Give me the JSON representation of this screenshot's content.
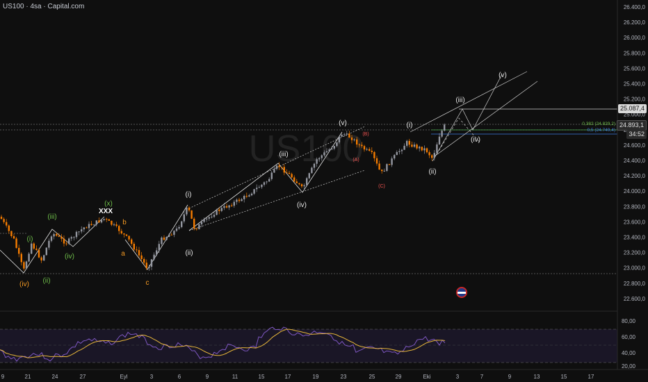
{
  "header": {
    "symbol_line": "US100 · 4sa · Capital.com"
  },
  "watermark": "US100",
  "price_axis": {
    "ticks": [
      "26.400,0",
      "26.200,0",
      "26.000,0",
      "25.800,0",
      "25.600,0",
      "25.400,0",
      "25.200,0",
      "25.000,0",
      "24.800,0",
      "24.600,0",
      "24.400,0",
      "24.200,0",
      "24.000,0",
      "23.800,0",
      "23.600,0",
      "23.400,0",
      "23.200,0",
      "23.000,0",
      "22.800,0",
      "22.600,0"
    ],
    "labels": {
      "level_high": "25.087,4",
      "last_price": "24.893,1",
      "countdown": "34:52"
    }
  },
  "rsi_axis": {
    "ticks": [
      "80,00",
      "60,00",
      "40,00",
      "20,00"
    ]
  },
  "time_axis": {
    "ticks": [
      "9",
      "21",
      "24",
      "27",
      "Eyl",
      "3",
      "6",
      "9",
      "11",
      "15",
      "17",
      "19",
      "23",
      "25",
      "29",
      "Eki",
      "3",
      "7",
      "9",
      "13",
      "15",
      "17"
    ]
  },
  "fib_labels": {
    "f382": "0,382 (24.829,2)",
    "f5": "0,5 (24.749,4)"
  },
  "waves": {
    "iv_orange": "(iv)",
    "ii_green": "(ii)",
    "i_green": "(i)",
    "iii_green": "(iii)",
    "iv_green": "(iv)",
    "x_green": "(x)",
    "xxx": "XXX",
    "b_orange": "b",
    "a_orange": "a",
    "c_orange": "c",
    "i_white": "(i)",
    "ii_white": "(ii)",
    "iii_white": "(iii)",
    "iv_white": "(iv)",
    "v_white": "(v)",
    "B_red": "(B)",
    "A_red": "(A)",
    "C_red": "(C)",
    "i_white2": "(i)",
    "ii_white2": "(ii)",
    "iii_white2": "(iii)",
    "iv_white2": "(iv)",
    "v_white2": "(v)"
  },
  "colors": {
    "bull": "#9598a1",
    "bear": "#f57c00",
    "wave_white": "#e6e6e6",
    "wave_orange": "#f59a23",
    "wave_green": "#6fbf4a",
    "wave_red": "#ef5350",
    "rsi": "#7e57c2",
    "rsi_ma": "#e8b73a"
  }
}
